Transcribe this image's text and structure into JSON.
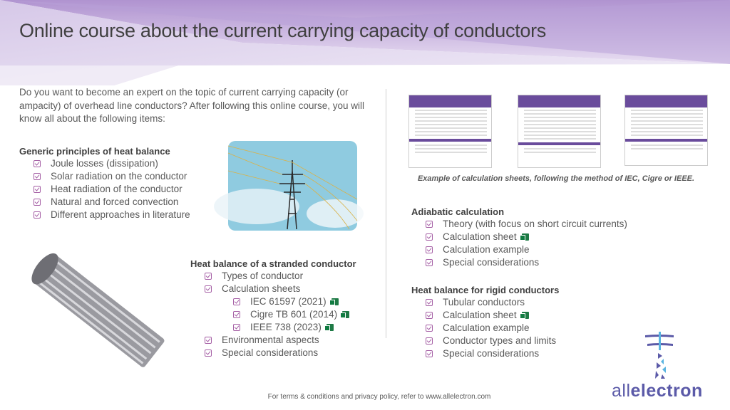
{
  "title": "Online course about the current carrying capacity of conductors",
  "intro": "Do you want to become an expert on the topic of current carrying capacity (or ampacity) of overhead line conductors? After following this online course, you will know all about the following items:",
  "sections": {
    "generic": {
      "heading": "Generic principles of heat balance",
      "items": [
        "Joule losses (dissipation)",
        "Solar radiation on the conductor",
        "Heat radiation of the conductor",
        "Natural and forced convection",
        "Different approaches in literature"
      ]
    },
    "stranded": {
      "heading": "Heat balance of a stranded conductor",
      "items": [
        "Types of conductor",
        "Calculation sheets",
        "IEC 61597 (2021)",
        "Cigre TB 601 (2014)",
        "IEEE 738 (2023)",
        "Environmental aspects",
        "Special considerations"
      ]
    },
    "adiabatic": {
      "heading": "Adiabatic calculation",
      "items": [
        "Theory (with focus on short circuit currents)",
        "Calculation sheet",
        "Calculation example",
        "Special considerations"
      ]
    },
    "rigid": {
      "heading": "Heat balance for rigid conductors",
      "items": [
        "Tubular conductors",
        "Calculation sheet",
        "Calculation example",
        "Conductor types and limits",
        "Special considerations"
      ]
    }
  },
  "caption": "Example of calculation sheets, following the method of IEC, Cigre or IEEE.",
  "footer": "For terms & conditions and privacy policy, refer to www.allelectron.com",
  "logo": {
    "light": "all",
    "bold": "electron"
  },
  "colors": {
    "accent": "#a55fa5",
    "brand": "#5b5aa8",
    "excel": "#107c41",
    "header": "#b39ad4"
  },
  "icons": [
    "checkbox-icon",
    "excel-icon"
  ]
}
